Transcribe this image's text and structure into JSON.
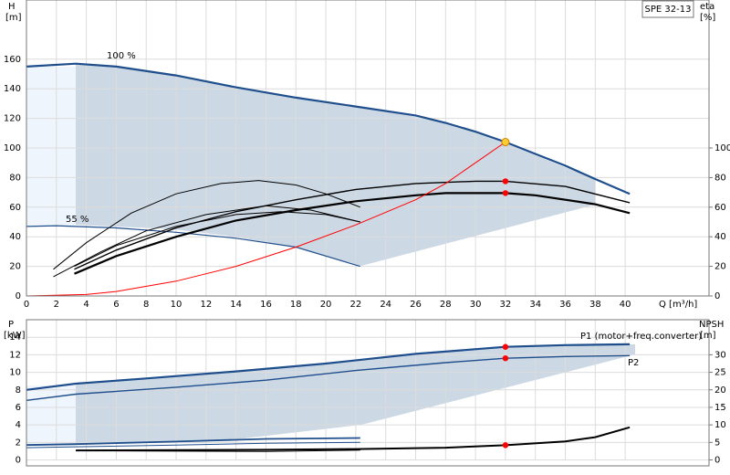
{
  "chart_data": [
    {
      "type": "line",
      "title": "SPE 32-13",
      "y_label": "H",
      "y_unit": "[m]",
      "y2_label": "eta",
      "y2_unit": "[%]",
      "x_label": "Q [m³/h]",
      "xlim": [
        0,
        45.6
      ],
      "xticks": [
        0,
        2,
        4,
        6,
        8,
        10,
        12,
        14,
        16,
        18,
        20,
        22,
        24,
        26,
        28,
        30,
        32,
        34,
        36,
        38,
        40
      ],
      "ylim": [
        0,
        200
      ],
      "yticks": [
        0,
        20,
        40,
        60,
        80,
        100,
        120,
        140,
        160
      ],
      "y2lim": [
        0,
        200
      ],
      "y2ticks": [
        0,
        20,
        40,
        60,
        80,
        100
      ],
      "grid": true,
      "series": [
        {
          "name": "100 %",
          "color": "#1f4e8c",
          "width": 2.2,
          "x": [
            0,
            3.3,
            6,
            10,
            14,
            18,
            22,
            26,
            28,
            30,
            32,
            34,
            36,
            38,
            40.3
          ],
          "values": [
            155,
            157,
            155,
            149,
            141,
            134,
            128,
            122,
            117,
            111,
            104,
            96,
            88,
            79,
            69
          ]
        },
        {
          "name": "55 %",
          "color": "#1f4e8c",
          "width": 1.2,
          "x": [
            0,
            2,
            6,
            10,
            14,
            18,
            22.3
          ],
          "values": [
            47,
            47.5,
            46,
            43,
            39,
            33,
            20
          ]
        },
        {
          "color": "#000000",
          "width": 1,
          "axis": "y2",
          "x": [
            1.8,
            4,
            7,
            10,
            13,
            15.5,
            18,
            20,
            22.3
          ],
          "values": [
            18,
            36,
            56,
            69,
            76,
            78,
            75,
            69,
            60
          ]
        },
        {
          "color": "#000000",
          "width": 1,
          "axis": "y2",
          "x": [
            1.8,
            5,
            8,
            12,
            16,
            19,
            22.3
          ],
          "values": [
            13,
            30,
            44,
            55,
            61,
            58,
            50
          ]
        },
        {
          "color": "#000000",
          "width": 1,
          "axis": "y2",
          "x": [
            3.2,
            6,
            10,
            14,
            17,
            20,
            22.3
          ],
          "values": [
            20,
            34,
            47,
            55,
            57,
            55,
            50
          ]
        },
        {
          "color": "#000000",
          "width": 1.4,
          "axis": "y2",
          "x": [
            3.2,
            6,
            10,
            14,
            18,
            22,
            26,
            30,
            32,
            36,
            40.3
          ],
          "values": [
            18,
            31,
            46,
            57,
            65,
            72,
            76,
            77.5,
            77.5,
            74,
            63
          ]
        },
        {
          "color": "#000000",
          "width": 2.2,
          "axis": "y2",
          "x": [
            3.2,
            6,
            10,
            14,
            18,
            22,
            26,
            28,
            32,
            34,
            38,
            40.3
          ],
          "values": [
            15,
            27,
            40,
            51,
            58,
            64,
            68,
            69.5,
            69.5,
            68,
            62,
            56
          ]
        },
        {
          "color": "#ff0000",
          "width": 1,
          "x": [
            0,
            4,
            6,
            10,
            14,
            18,
            22,
            26,
            28,
            30,
            32
          ],
          "values": [
            0,
            1,
            3,
            10,
            20,
            33,
            48,
            65,
            76,
            90,
            104
          ]
        },
        {
          "color": "#ff0000",
          "marker": "dot",
          "axis": "y2",
          "x": [
            32
          ],
          "values": [
            77.5
          ]
        },
        {
          "color": "#ff0000",
          "marker": "dot",
          "axis": "y2",
          "x": [
            32
          ],
          "values": [
            69.5
          ]
        },
        {
          "color": "#ffcc33",
          "marker": "dot",
          "x": [
            32
          ],
          "values": [
            104
          ]
        }
      ]
    },
    {
      "type": "line",
      "y_label": "P",
      "y_unit": "[kW]",
      "y2_label": "NPSH",
      "y2_unit": "[m]",
      "xlim": [
        0,
        45.6
      ],
      "xticks": [
        0,
        2,
        4,
        6,
        8,
        10,
        12,
        14,
        16,
        18,
        20,
        22,
        24,
        26,
        28,
        30,
        32,
        34,
        36,
        38,
        40
      ],
      "ylim": [
        0,
        16
      ],
      "yticks": [
        0,
        2,
        4,
        6,
        8,
        10,
        12,
        14
      ],
      "y2lim": [
        0,
        40
      ],
      "y2ticks": [
        0,
        5,
        10,
        15,
        20,
        25,
        30
      ],
      "grid": true,
      "series": [
        {
          "name": "P1 (motor+freq.converter)",
          "color": "#1f4e8c",
          "width": 2.2,
          "x": [
            0,
            3.3,
            8,
            14,
            20,
            26,
            32,
            36,
            40.3
          ],
          "values": [
            8,
            8.7,
            9.3,
            10.1,
            11,
            12.1,
            12.9,
            13.1,
            13.2
          ]
        },
        {
          "name": "P2",
          "color": "#1f4e8c",
          "width": 1.4,
          "x": [
            0,
            3.3,
            10,
            16,
            22,
            28,
            32,
            36,
            40.3
          ],
          "values": [
            6.8,
            7.5,
            8.3,
            9.1,
            10.2,
            11.1,
            11.6,
            11.8,
            11.9
          ]
        },
        {
          "color": "#1f4e8c",
          "width": 1.8,
          "x": [
            0,
            3.3,
            10,
            16,
            22.3
          ],
          "values": [
            1.7,
            1.8,
            2.1,
            2.4,
            2.5
          ]
        },
        {
          "color": "#1f4e8c",
          "width": 1,
          "x": [
            0,
            3.3,
            10,
            16,
            22.3
          ],
          "values": [
            1.4,
            1.5,
            1.7,
            1.9,
            2.0
          ]
        },
        {
          "color": "#000000",
          "width": 1,
          "axis": "y2",
          "x": [
            3.3,
            10,
            16,
            22.3
          ],
          "values": [
            2.6,
            2.5,
            2.4,
            2.8
          ]
        },
        {
          "color": "#000000",
          "width": 2,
          "axis": "y2",
          "x": [
            3.3,
            10,
            16,
            22,
            28,
            32,
            36,
            38,
            40.3
          ],
          "values": [
            2.7,
            2.8,
            2.9,
            3.1,
            3.5,
            4.2,
            5.3,
            6.5,
            9.3
          ]
        },
        {
          "color": "#ff0000",
          "marker": "dot",
          "x": [
            32
          ],
          "values": [
            12.9
          ]
        },
        {
          "color": "#ff0000",
          "marker": "dot",
          "x": [
            32
          ],
          "values": [
            11.6
          ]
        },
        {
          "color": "#ff0000",
          "marker": "dot",
          "axis": "y2",
          "x": [
            32
          ],
          "values": [
            4.2
          ]
        }
      ]
    }
  ]
}
